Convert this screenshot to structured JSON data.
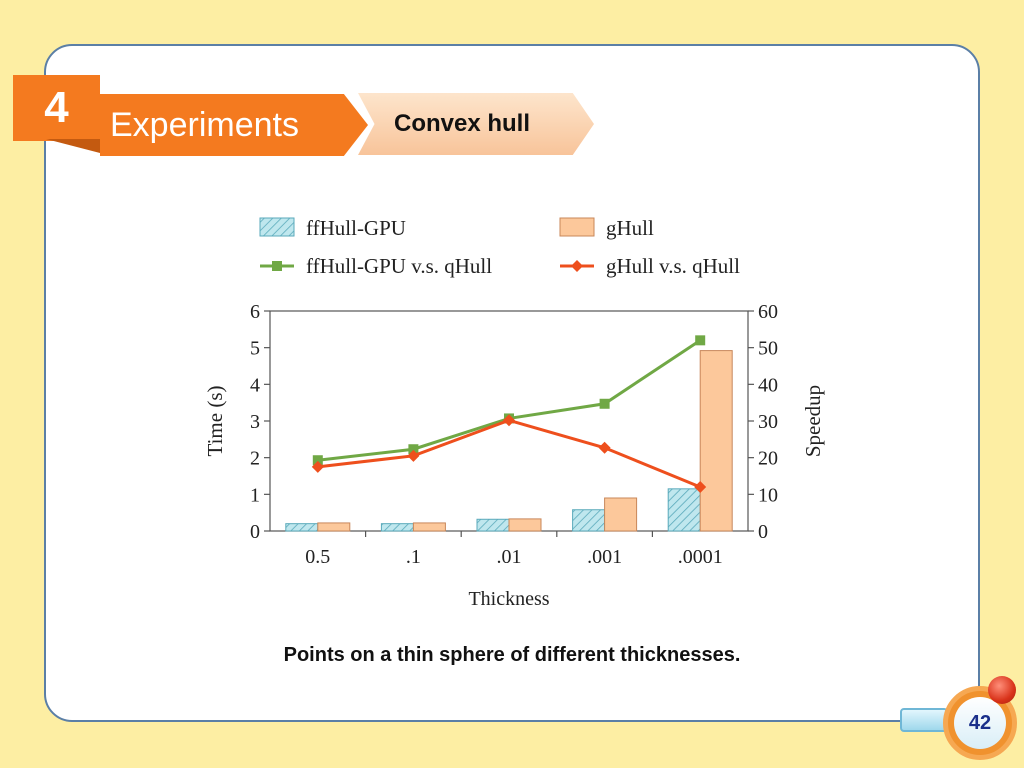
{
  "section": {
    "number": "4",
    "title": "Experiments",
    "subtitle": "Convex hull"
  },
  "caption": "Points on a thin sphere of different thicknesses.",
  "page_number": "42",
  "colors": {
    "background": "#fdeea3",
    "accent_orange": "#f47a1f",
    "card_border": "#5b7fa6",
    "ffhull_bar": "#bfe7ee",
    "ffhull_bar_stroke": "#5aaabb",
    "ghull_bar": "#fcc89b",
    "ghull_bar_stroke": "#c8875a",
    "ffhull_line": "#70a845",
    "ghull_line": "#ee4f1d"
  },
  "chart_data": {
    "type": "bar",
    "categories": [
      "0.5",
      ".1",
      ".01",
      ".001",
      ".0001"
    ],
    "xlabel": "Thickness",
    "ylabel": "Time (s)",
    "y2label": "Speedup",
    "ylim": [
      0,
      6
    ],
    "y2lim": [
      0,
      60
    ],
    "yticks": [
      "0",
      "1",
      "2",
      "3",
      "4",
      "5",
      "6"
    ],
    "y2ticks": [
      "0",
      "10",
      "20",
      "30",
      "40",
      "50",
      "60"
    ],
    "grid": false,
    "legend_position": "top",
    "bar_series": [
      {
        "name": "ffHull-GPU",
        "values": [
          0.2,
          0.2,
          0.32,
          0.58,
          1.15
        ],
        "axis": "left"
      },
      {
        "name": "gHull",
        "values": [
          0.22,
          0.22,
          0.33,
          0.9,
          4.92
        ],
        "axis": "left"
      }
    ],
    "line_series": [
      {
        "name": "ffHull-GPU v.s. qHull",
        "values": [
          19.3,
          22.3,
          30.7,
          34.7,
          52.0
        ],
        "axis": "right",
        "marker": "square"
      },
      {
        "name": "gHull v.s. qHull",
        "values": [
          17.5,
          20.5,
          30.2,
          22.7,
          12.0
        ],
        "axis": "right",
        "marker": "diamond"
      }
    ]
  }
}
